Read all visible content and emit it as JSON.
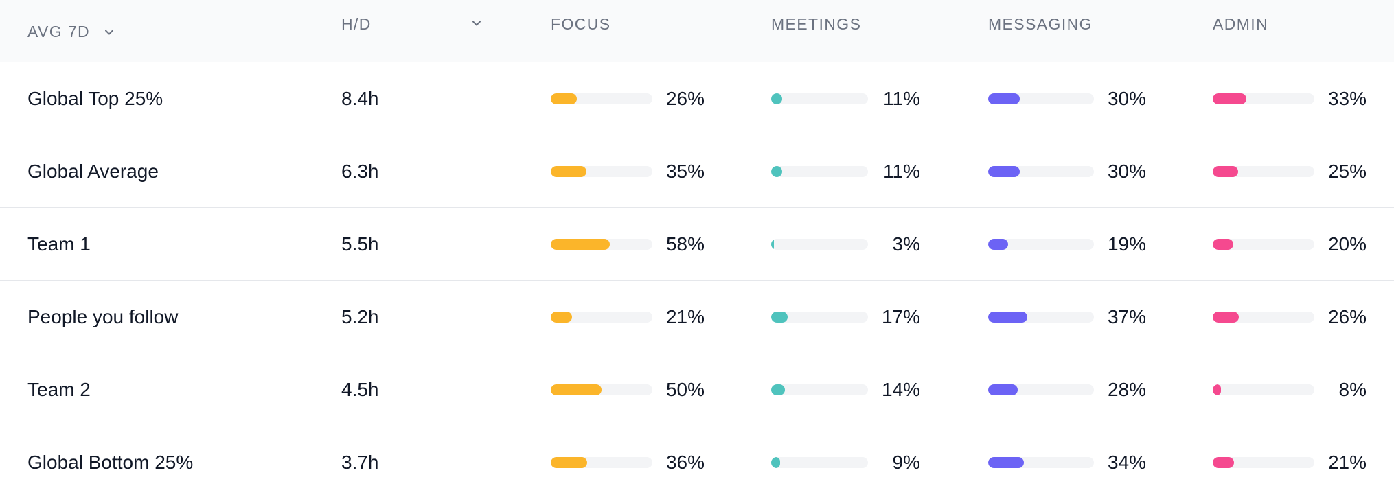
{
  "header": {
    "period_label": "AVG 7D",
    "hd_label": "H/D",
    "focus_label": "FOCUS",
    "meetings_label": "MEETINGS",
    "messaging_label": "MESSAGING",
    "admin_label": "ADMIN"
  },
  "colors": {
    "focus": "#fbb52a",
    "meetings": "#4fc3bd",
    "messaging": "#6c63f5",
    "admin": "#f5498f",
    "track": "#f3f4f6"
  },
  "rows": [
    {
      "name": "Global Top 25%",
      "hd": "8.4h",
      "focus": "26%",
      "meetings": "11%",
      "messaging": "30%",
      "admin": "33%"
    },
    {
      "name": "Global Average",
      "hd": "6.3h",
      "focus": "35%",
      "meetings": "11%",
      "messaging": "30%",
      "admin": "25%"
    },
    {
      "name": "Team 1",
      "hd": "5.5h",
      "focus": "58%",
      "meetings": "3%",
      "messaging": "19%",
      "admin": "20%"
    },
    {
      "name": "People you follow",
      "hd": "5.2h",
      "focus": "21%",
      "meetings": "17%",
      "messaging": "37%",
      "admin": "26%"
    },
    {
      "name": "Team 2",
      "hd": "4.5h",
      "focus": "50%",
      "meetings": "14%",
      "messaging": "28%",
      "admin": "8%"
    },
    {
      "name": "Global Bottom 25%",
      "hd": "3.7h",
      "focus": "36%",
      "meetings": "9%",
      "messaging": "34%",
      "admin": "21%"
    }
  ]
}
